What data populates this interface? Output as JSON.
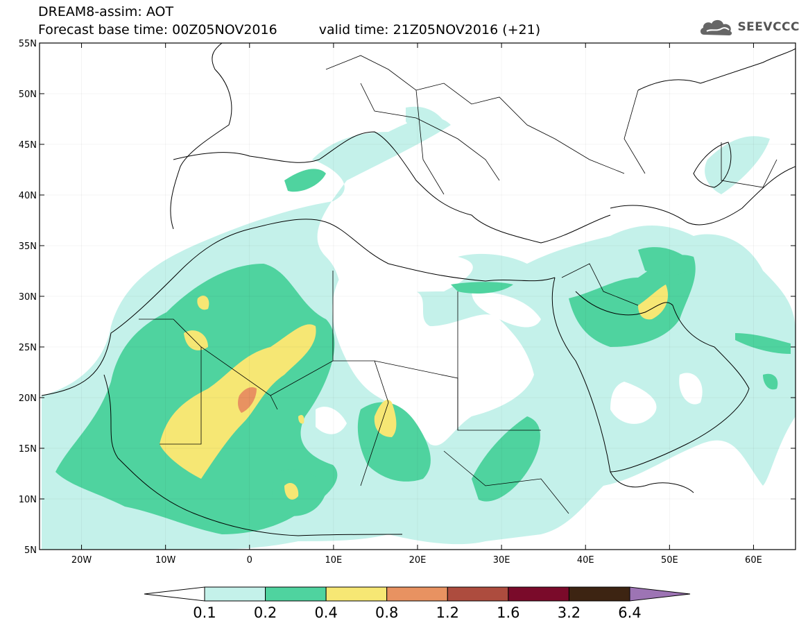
{
  "header": {
    "title": "DREAM8-assim: AOT",
    "base_time": "Forecast base time: 00Z05NOV2016",
    "valid_time": "valid time: 21Z05NOV2016 (+21)"
  },
  "logo": {
    "text": "SEEVCCC",
    "icon": "cloud-icon"
  },
  "map": {
    "lon_range": [
      -25,
      65
    ],
    "lat_range": [
      5,
      55
    ],
    "lon_ticks": [
      {
        "value": -20,
        "label": "20W"
      },
      {
        "value": -10,
        "label": "10W"
      },
      {
        "value": 0,
        "label": "0"
      },
      {
        "value": 10,
        "label": "10E"
      },
      {
        "value": 20,
        "label": "20E"
      },
      {
        "value": 30,
        "label": "30E"
      },
      {
        "value": 40,
        "label": "40E"
      },
      {
        "value": 50,
        "label": "50E"
      },
      {
        "value": 60,
        "label": "60E"
      }
    ],
    "lat_ticks": [
      {
        "value": 55,
        "label": "55N"
      },
      {
        "value": 50,
        "label": "50N"
      },
      {
        "value": 45,
        "label": "45N"
      },
      {
        "value": 40,
        "label": "40N"
      },
      {
        "value": 35,
        "label": "35N"
      },
      {
        "value": 30,
        "label": "30N"
      },
      {
        "value": 25,
        "label": "25N"
      },
      {
        "value": 20,
        "label": "20N"
      },
      {
        "value": 15,
        "label": "15N"
      },
      {
        "value": 10,
        "label": "10N"
      },
      {
        "value": 5,
        "label": "5N"
      }
    ]
  },
  "colorbar": {
    "labels": [
      "0.1",
      "0.2",
      "0.4",
      "0.8",
      "1.2",
      "1.6",
      "3.2",
      "6.4"
    ],
    "colors": [
      "#c4f1ea",
      "#4fd39f",
      "#f6e774",
      "#e89261",
      "#ad4c3e",
      "#7a0a2a",
      "#3d2412",
      "#9d74b4"
    ]
  }
}
